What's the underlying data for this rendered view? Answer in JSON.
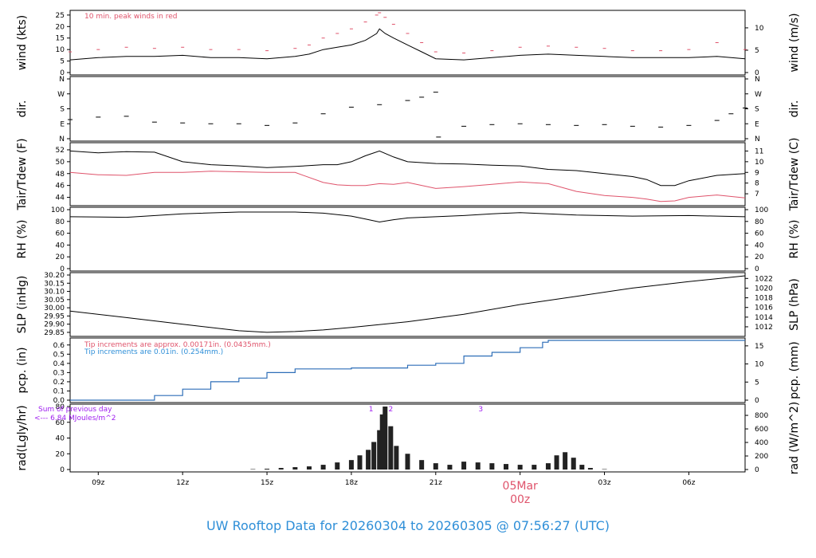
{
  "chart_data": [
    {
      "type": "line",
      "panel": "wind",
      "ylabel_left": "wind (kts)",
      "ylabel_right": "wind (m/s)",
      "ylim": [
        0,
        26
      ],
      "yticks_left": [
        "0",
        "5",
        "10",
        "15",
        "20",
        "25"
      ],
      "yticks_right": [
        "0",
        "5",
        "10"
      ],
      "annotation": "10 min. peak winds in red",
      "colors": {
        "mean": "#000000",
        "peak": "#df536b"
      },
      "x": [
        8,
        9,
        10,
        11,
        12,
        13,
        14,
        15,
        16,
        16.5,
        17,
        17.5,
        18,
        18.5,
        18.9,
        19,
        19.2,
        19.5,
        20,
        20.5,
        21,
        22,
        23,
        24,
        25,
        26,
        27,
        28,
        29,
        30,
        31,
        32
      ],
      "series": [
        {
          "values": [
            5.5,
            6.5,
            7,
            7,
            7.5,
            6.5,
            6.5,
            6,
            7,
            8,
            10,
            11,
            12,
            14,
            17,
            19,
            17,
            15,
            12,
            9,
            6,
            5.5,
            6.5,
            7.5,
            8,
            7.5,
            7,
            6.5,
            6.5,
            6.5,
            7,
            6
          ]
        }
      ],
      "peak_winds": [
        9,
        10,
        11,
        10.5,
        11,
        10,
        10,
        9.5,
        10.5,
        12,
        15,
        17,
        19,
        22,
        25,
        26,
        24,
        21,
        17,
        13,
        9,
        8.5,
        9.5,
        11,
        11.5,
        11,
        10.5,
        9.5,
        9.5,
        10,
        13,
        10
      ]
    },
    {
      "type": "scatter",
      "panel": "dir",
      "ylabel_left": "dir.",
      "ylabel_right": "dir.",
      "ylim": [
        0,
        360
      ],
      "yticks": [
        "N",
        "E",
        "S",
        "W",
        "N"
      ],
      "x": [
        8,
        9,
        10,
        11,
        12,
        13,
        14,
        15,
        16,
        17,
        18,
        19,
        20,
        20.5,
        21,
        21.1,
        22,
        23,
        24,
        25,
        26,
        27,
        28,
        29,
        30,
        31,
        31.5,
        32
      ],
      "values": [
        115,
        130,
        135,
        100,
        95,
        90,
        90,
        80,
        95,
        150,
        190,
        205,
        230,
        250,
        280,
        10,
        75,
        85,
        90,
        85,
        80,
        85,
        75,
        70,
        80,
        110,
        150,
        185
      ]
    },
    {
      "type": "line",
      "panel": "temperature",
      "ylabel_left": "Tair/Tdew (F)",
      "ylabel_right": "Tair/Tdew (C)",
      "ylim": [
        43,
        52.8
      ],
      "yticks_left": [
        "44",
        "46",
        "48",
        "50",
        "52"
      ],
      "yticks_right": [
        "7",
        "8",
        "9",
        "10",
        "11"
      ],
      "colors": {
        "air": "#000000",
        "dew": "#df536b"
      },
      "x": [
        8,
        9,
        10,
        11,
        12,
        13,
        14,
        15,
        16,
        17,
        17.5,
        18,
        18.5,
        19,
        19.5,
        20,
        21,
        22,
        23,
        24,
        25,
        26,
        27,
        28,
        28.5,
        29,
        29.5,
        30,
        31,
        32
      ],
      "series": [
        {
          "values": [
            51.8,
            51.5,
            51.7,
            51.6,
            50,
            49.5,
            49.3,
            49,
            49.2,
            49.5,
            49.5,
            50,
            51,
            51.8,
            50.8,
            50,
            49.7,
            49.6,
            49.4,
            49.3,
            48.7,
            48.5,
            48,
            47.5,
            47,
            46,
            46,
            46.8,
            47.7,
            48
          ]
        },
        {
          "values": [
            48.2,
            47.8,
            47.7,
            48.2,
            48.2,
            48.4,
            48.3,
            48.2,
            48.2,
            46.5,
            46.1,
            46,
            46,
            46.3,
            46.2,
            46.5,
            45.5,
            45.8,
            46.2,
            46.6,
            46.3,
            45,
            44.3,
            44,
            43.7,
            43.3,
            43.4,
            44,
            44.4,
            43.9
          ]
        }
      ]
    },
    {
      "type": "line",
      "panel": "rh",
      "ylabel_left": "RH (%)",
      "ylabel_right": "RH (%)",
      "ylim": [
        0,
        100
      ],
      "yticks": [
        "0",
        "20",
        "40",
        "60",
        "80",
        "100"
      ],
      "x": [
        8,
        10,
        12,
        14,
        16,
        17,
        18,
        18.5,
        19,
        19.5,
        20,
        21,
        22,
        23,
        24,
        26,
        28,
        30,
        32
      ],
      "values": [
        88,
        87,
        93,
        96,
        96,
        94,
        89,
        84,
        79,
        83,
        86,
        88,
        90,
        93,
        95,
        91,
        89,
        90,
        88
      ]
    },
    {
      "type": "line",
      "panel": "slp",
      "ylabel_left": "SLP (inHg)",
      "ylabel_right": "SLP (hPa)",
      "ylim": [
        29.84,
        30.2
      ],
      "yticks_left": [
        "29.85",
        "29.90",
        "29.95",
        "30.00",
        "30.05",
        "30.10",
        "30.15",
        "30.20"
      ],
      "yticks_right": [
        "1012",
        "1014",
        "1016",
        "1018",
        "1020",
        "1022"
      ],
      "x": [
        8,
        10,
        12,
        14,
        15,
        16,
        17,
        18,
        20,
        22,
        24,
        26,
        28,
        30,
        32
      ],
      "values": [
        29.98,
        29.94,
        29.9,
        29.86,
        29.85,
        29.855,
        29.865,
        29.88,
        29.915,
        29.96,
        30.02,
        30.07,
        30.12,
        30.16,
        30.195
      ]
    },
    {
      "type": "line",
      "panel": "precip",
      "ylabel_left": "pcp. (in)",
      "ylabel_right": "pcp. (mm)",
      "ylim": [
        0,
        0.65
      ],
      "yticks_left": [
        "0.0",
        "0.1",
        "0.2",
        "0.3",
        "0.4",
        "0.5",
        "0.6"
      ],
      "yticks_right": [
        "0",
        "5",
        "10",
        "15"
      ],
      "annotations": [
        "Tip increments are approx. 0.00171in. (0.0435mm.)",
        "Tip increments are 0.01in. (0.254mm.)"
      ],
      "colors": {
        "line": "#2f6fb8",
        "note_red": "#df536b",
        "note_blue": "#2f8fd8"
      },
      "x": [
        8,
        10.5,
        11,
        12,
        13,
        14,
        15,
        16,
        17,
        18,
        19,
        20,
        21,
        22,
        23,
        24,
        24.8,
        25,
        32
      ],
      "values": [
        0,
        0,
        0.05,
        0.12,
        0.2,
        0.24,
        0.3,
        0.34,
        0.34,
        0.35,
        0.35,
        0.38,
        0.4,
        0.48,
        0.52,
        0.57,
        0.63,
        0.65,
        0.65
      ]
    },
    {
      "type": "bar",
      "panel": "radiation",
      "ylabel_left": "rad(Lgly/hr)",
      "ylabel_right": "rad (W/m^2)",
      "ylim": [
        0,
        80
      ],
      "yticks_left": [
        "0",
        "20",
        "40",
        "60",
        "80"
      ],
      "yticks_right": [
        "0",
        "200",
        "400",
        "600",
        "800"
      ],
      "annotation_lines": [
        "Sum of previous day",
        "<--- 6.84 MJoules/m^2"
      ],
      "markers": [
        {
          "label": "1",
          "x": 18.7
        },
        {
          "label": "2",
          "x": 19.4
        },
        {
          "label": "3",
          "x": 22.6
        }
      ],
      "colors": {
        "bars": "#222222",
        "text": "#a020f0"
      },
      "x": [
        14.5,
        15,
        15.5,
        16,
        16.5,
        17,
        17.5,
        18,
        18.3,
        18.6,
        18.8,
        19,
        19.1,
        19.2,
        19.4,
        19.6,
        20,
        20.5,
        21,
        21.5,
        22,
        22.5,
        23,
        23.5,
        24,
        24.5,
        25,
        25.3,
        25.6,
        25.9,
        26.2,
        26.5,
        27
      ],
      "values": [
        0.5,
        1,
        2,
        3,
        4,
        6,
        9,
        12,
        18,
        25,
        35,
        50,
        70,
        80,
        55,
        30,
        20,
        12,
        8,
        6,
        10,
        9,
        8,
        7,
        6,
        6,
        8,
        18,
        22,
        15,
        6,
        2,
        0.5
      ]
    }
  ],
  "x_axis": {
    "xlim": [
      8,
      32
    ],
    "ticks": [
      {
        "x": 9,
        "label": "09z"
      },
      {
        "x": 12,
        "label": "12z"
      },
      {
        "x": 15,
        "label": "15z"
      },
      {
        "x": 18,
        "label": "18z"
      },
      {
        "x": 21,
        "label": "21z"
      },
      {
        "x": 24,
        "label": "00z"
      },
      {
        "x": 27,
        "label": "03z"
      },
      {
        "x": 30,
        "label": "06z"
      }
    ],
    "date_marker": {
      "x": 24,
      "date": "05Mar",
      "time": "00z",
      "color": "#df536b"
    }
  },
  "footer_title": "UW Rooftop Data for 20260304  to  20260305 @ 07:56:27  (UTC)"
}
